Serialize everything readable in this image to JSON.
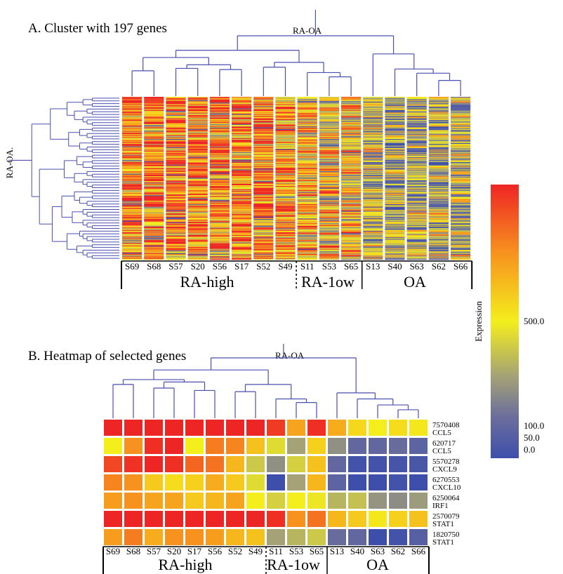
{
  "panel_a": {
    "title": "A. Cluster with 197 genes",
    "top_root_label": "RA-OA",
    "side_root_label": "RA-OA.",
    "group_labels": [
      "RA-high",
      "RA-1ow",
      "OA"
    ]
  },
  "panel_b": {
    "title": "B. Heatmap of selected genes",
    "top_root_label": "RA-OA",
    "group_labels": [
      "RA-high",
      "RA-1ow",
      "OA"
    ]
  },
  "colorbar": {
    "label": "Expression",
    "tick_labels": [
      "500.0",
      "100.0",
      "50.0",
      "0.0"
    ]
  },
  "colors": {
    "low": "#3d4fab",
    "mid_low": "#6b6e9c",
    "mid": "#a4a276",
    "yellow": "#f4ee1c",
    "orange": "#f7921e",
    "red": "#ee2525",
    "dendrogram": "#4a4fb0"
  },
  "chart_data": [
    {
      "type": "heatmap",
      "title": "A. Cluster with 197 genes",
      "samples": [
        "S69",
        "S68",
        "S57",
        "S20",
        "S56",
        "S17",
        "S52",
        "S49",
        "S11",
        "S53",
        "S65",
        "S13",
        "S40",
        "S63",
        "S62",
        "S66"
      ],
      "groups": [
        {
          "name": "RA-high",
          "samples": [
            "S69",
            "S68",
            "S57",
            "S20",
            "S56",
            "S17",
            "S52",
            "S49"
          ]
        },
        {
          "name": "RA-1ow",
          "samples": [
            "S11",
            "S53",
            "S65"
          ]
        },
        {
          "name": "OA",
          "samples": [
            "S13",
            "S40",
            "S63",
            "S62",
            "S66"
          ]
        }
      ],
      "n_genes": 197
    },
    {
      "type": "heatmap",
      "title": "B. Heatmap of selected genes",
      "columns": [
        "S69",
        "S68",
        "S57",
        "S20",
        "S17",
        "S56",
        "S52",
        "S49",
        "S11",
        "S53",
        "S65",
        "S13",
        "S40",
        "S63",
        "S62",
        "S66"
      ],
      "rows": [
        {
          "id": "7570408",
          "gene": "CCL5"
        },
        {
          "id": "620717",
          "gene": "CCL5"
        },
        {
          "id": "5570278",
          "gene": "CXCL9"
        },
        {
          "id": "6270553",
          "gene": "CXCL10"
        },
        {
          "id": "6250064",
          "gene": "IRF1"
        },
        {
          "id": "2570079",
          "gene": "STAT1"
        },
        {
          "id": "1820750",
          "gene": "STAT1"
        }
      ],
      "values": [
        [
          1.0,
          1.0,
          1.0,
          1.0,
          1.0,
          1.0,
          1.0,
          1.0,
          0.95,
          0.7,
          0.98,
          0.68,
          0.56,
          0.5,
          0.55,
          0.52
        ],
        [
          0.5,
          0.75,
          0.98,
          1.0,
          0.5,
          0.8,
          0.78,
          0.62,
          0.45,
          0.3,
          0.58,
          0.25,
          0.12,
          0.12,
          0.14,
          0.1
        ],
        [
          0.92,
          0.97,
          1.0,
          0.98,
          0.85,
          0.82,
          0.65,
          0.4,
          0.25,
          0.42,
          0.62,
          0.12,
          0.02,
          0.02,
          0.03,
          0.04
        ],
        [
          0.78,
          0.75,
          0.6,
          0.55,
          0.58,
          0.68,
          0.6,
          0.45,
          0.0,
          0.3,
          0.65,
          0.1,
          0.0,
          0.0,
          0.02,
          0.0
        ],
        [
          0.72,
          0.75,
          0.7,
          0.7,
          0.6,
          0.65,
          0.7,
          0.5,
          0.42,
          0.5,
          0.48,
          0.35,
          0.38,
          0.26,
          0.24,
          0.28
        ],
        [
          1.0,
          1.0,
          1.0,
          1.0,
          1.0,
          1.0,
          1.0,
          1.0,
          0.98,
          0.75,
          0.82,
          0.65,
          0.6,
          0.52,
          0.58,
          0.62
        ],
        [
          0.72,
          0.8,
          0.68,
          0.75,
          0.75,
          0.72,
          0.65,
          0.62,
          0.3,
          0.35,
          0.4,
          0.14,
          0.12,
          0.0,
          0.02,
          0.08
        ]
      ],
      "colorbar": {
        "label": "Expression",
        "ticks": [
          500.0,
          100.0,
          50.0,
          0.0
        ]
      }
    }
  ]
}
